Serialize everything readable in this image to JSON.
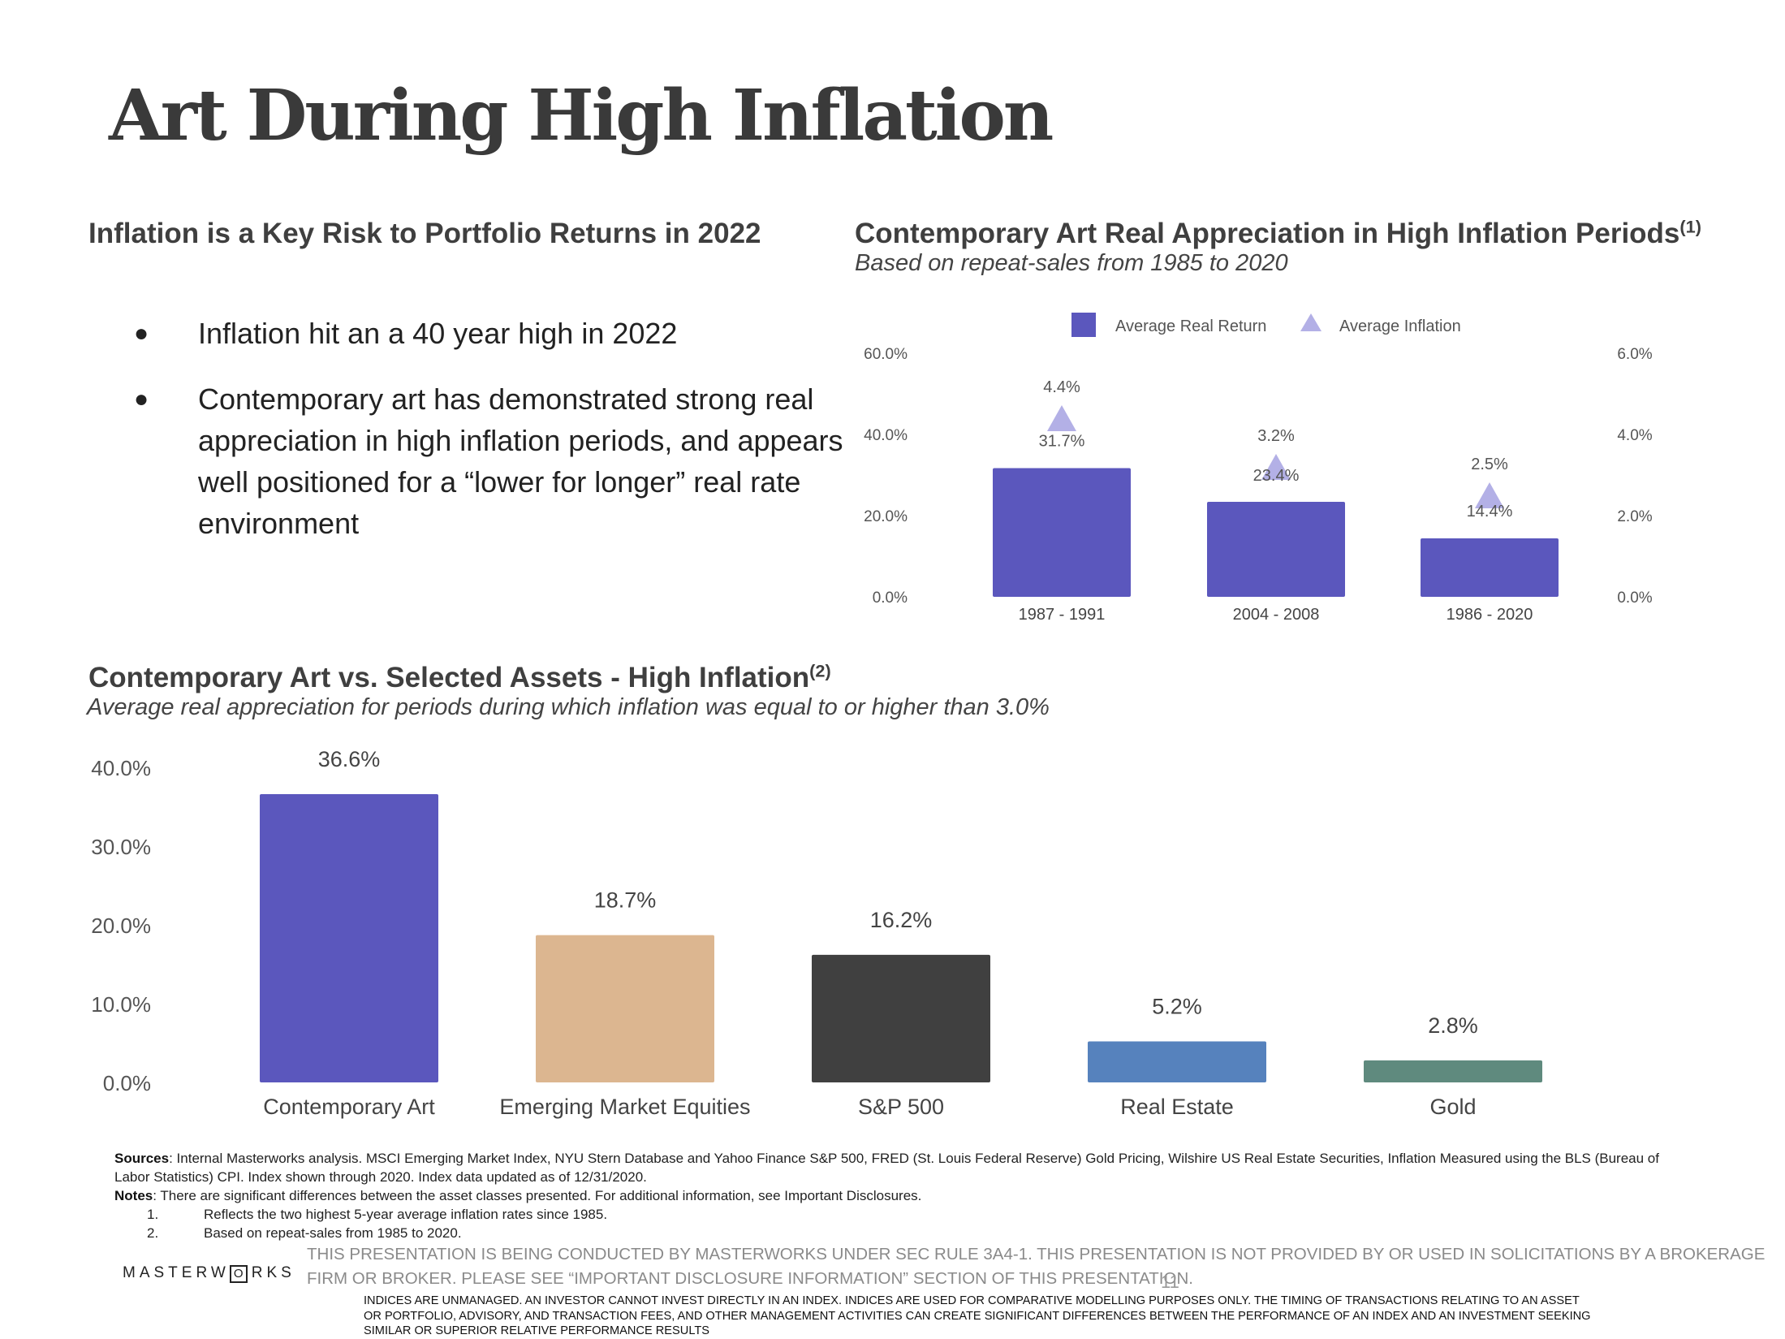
{
  "title": "Art During High Inflation",
  "left_section": {
    "heading": "Inflation is a Key Risk to Portfolio Returns in 2022",
    "bullet_symbol": "●",
    "bullets": [
      "Inflation hit an a 40 year high in 2022",
      "Contemporary art has demonstrated strong real appreciation in high inflation periods, and appears well positioned for a “lower for longer” real rate environment"
    ]
  },
  "chart1_section": {
    "heading": "Contemporary Art Real Appreciation in High Inflation Periods",
    "heading_sup": "(1)",
    "subtitle": "Based on repeat-sales from 1985 to 2020"
  },
  "chart2_section": {
    "heading": "Contemporary Art vs. Selected Assets - High Inflation",
    "heading_sup": "(2)",
    "subtitle": "Average real appreciation for periods during which inflation was equal to or higher than 3.0%"
  },
  "chart_data": [
    {
      "type": "bar",
      "categories": [
        "1987 - 1991",
        "2004 - 2008",
        "1986 - 2020"
      ],
      "series": [
        {
          "name": "Average Real Return",
          "type": "bar",
          "axis": "left",
          "values": [
            31.7,
            23.4,
            14.4
          ],
          "labels": [
            "31.7%",
            "23.4%",
            "14.4%"
          ],
          "color": "#5b57bd"
        },
        {
          "name": "Average Inflation",
          "type": "triangle-marker",
          "axis": "right",
          "values": [
            4.4,
            3.2,
            2.5
          ],
          "labels": [
            "4.4%",
            "3.2%",
            "2.5%"
          ],
          "color": "#b3b0e6"
        }
      ],
      "ylim": [
        0,
        60
      ],
      "yticks": [
        "0.0%",
        "20.0%",
        "40.0%",
        "60.0%"
      ],
      "y2lim": [
        0,
        6
      ],
      "y2ticks": [
        "0.0%",
        "2.0%",
        "4.0%",
        "6.0%"
      ],
      "legend": "top",
      "grid": false
    },
    {
      "type": "bar",
      "categories": [
        "Contemporary Art",
        "Emerging Market Equities",
        "S&P 500",
        "Real Estate",
        "Gold"
      ],
      "values": [
        36.6,
        18.7,
        16.2,
        5.2,
        2.8
      ],
      "labels": [
        "36.6%",
        "18.7%",
        "16.2%",
        "5.2%",
        "2.8%"
      ],
      "colors": [
        "#5b57bd",
        "#dcb690",
        "#404040",
        "#5682bd",
        "#5f8a7e"
      ],
      "ylim": [
        0,
        40
      ],
      "yticks": [
        "0.0%",
        "10.0%",
        "20.0%",
        "30.0%",
        "40.0%"
      ],
      "grid": false
    }
  ],
  "sources": {
    "sources_label": "Sources",
    "sources_text": ": Internal Masterworks analysis. MSCI Emerging Market Index, NYU Stern Database and Yahoo Finance S&P 500, FRED (St. Louis Federal Reserve) Gold Pricing, Wilshire US Real Estate Securities, Inflation Measured using the BLS (Bureau of Labor Statistics) CPI. Index shown through 2020. Index data updated as of 12/31/2020.",
    "notes_label": "Notes",
    "notes_text": ": There are significant differences between the asset classes presented. For additional information, see Important Disclosures.",
    "notes": [
      {
        "num": "1.",
        "text": "Reflects the two highest 5-year average inflation rates since 1985."
      },
      {
        "num": "2.",
        "text": "Based on repeat-sales from 1985 to 2020."
      }
    ]
  },
  "footer": {
    "logo_left": "MASTERW",
    "logo_o": "O",
    "logo_right": "RKS",
    "disclaimer": "THIS PRESENTATION  IS BEING CONDUCTED BY MASTERWORKS UNDER SEC RULE 3A4-1. THIS PRESENTATION  IS NOT PROVIDED BY OR USED IN SOLICITATIONS BY A BROKERAGE FIRM OR BROKER. PLEASE SEE “IMPORTANT DISCLOSURE INFORMATION” SECTION OF THIS PRESENTATION.",
    "page_number": "11",
    "fine_print": "INDICES ARE UNMANAGED. AN INVESTOR CANNOT INVEST DIRECTLY IN AN INDEX. INDICES ARE USED FOR COMPARATIVE MODELLING PURPOSES ONLY. THE TIMING OF TRANSACTIONS RELATING TO AN ASSET OR PORTFOLIO, ADVISORY, AND TRANSACTION FEES, AND OTHER MANAGEMENT ACTIVITIES CAN CREATE SIGNIFICANT DIFFERENCES BETWEEN THE PERFORMANCE OF AN INDEX AND AN INVESTMENT SEEKING SIMILAR OR SUPERIOR RELATIVE PERFORMANCE RESULTS"
  }
}
